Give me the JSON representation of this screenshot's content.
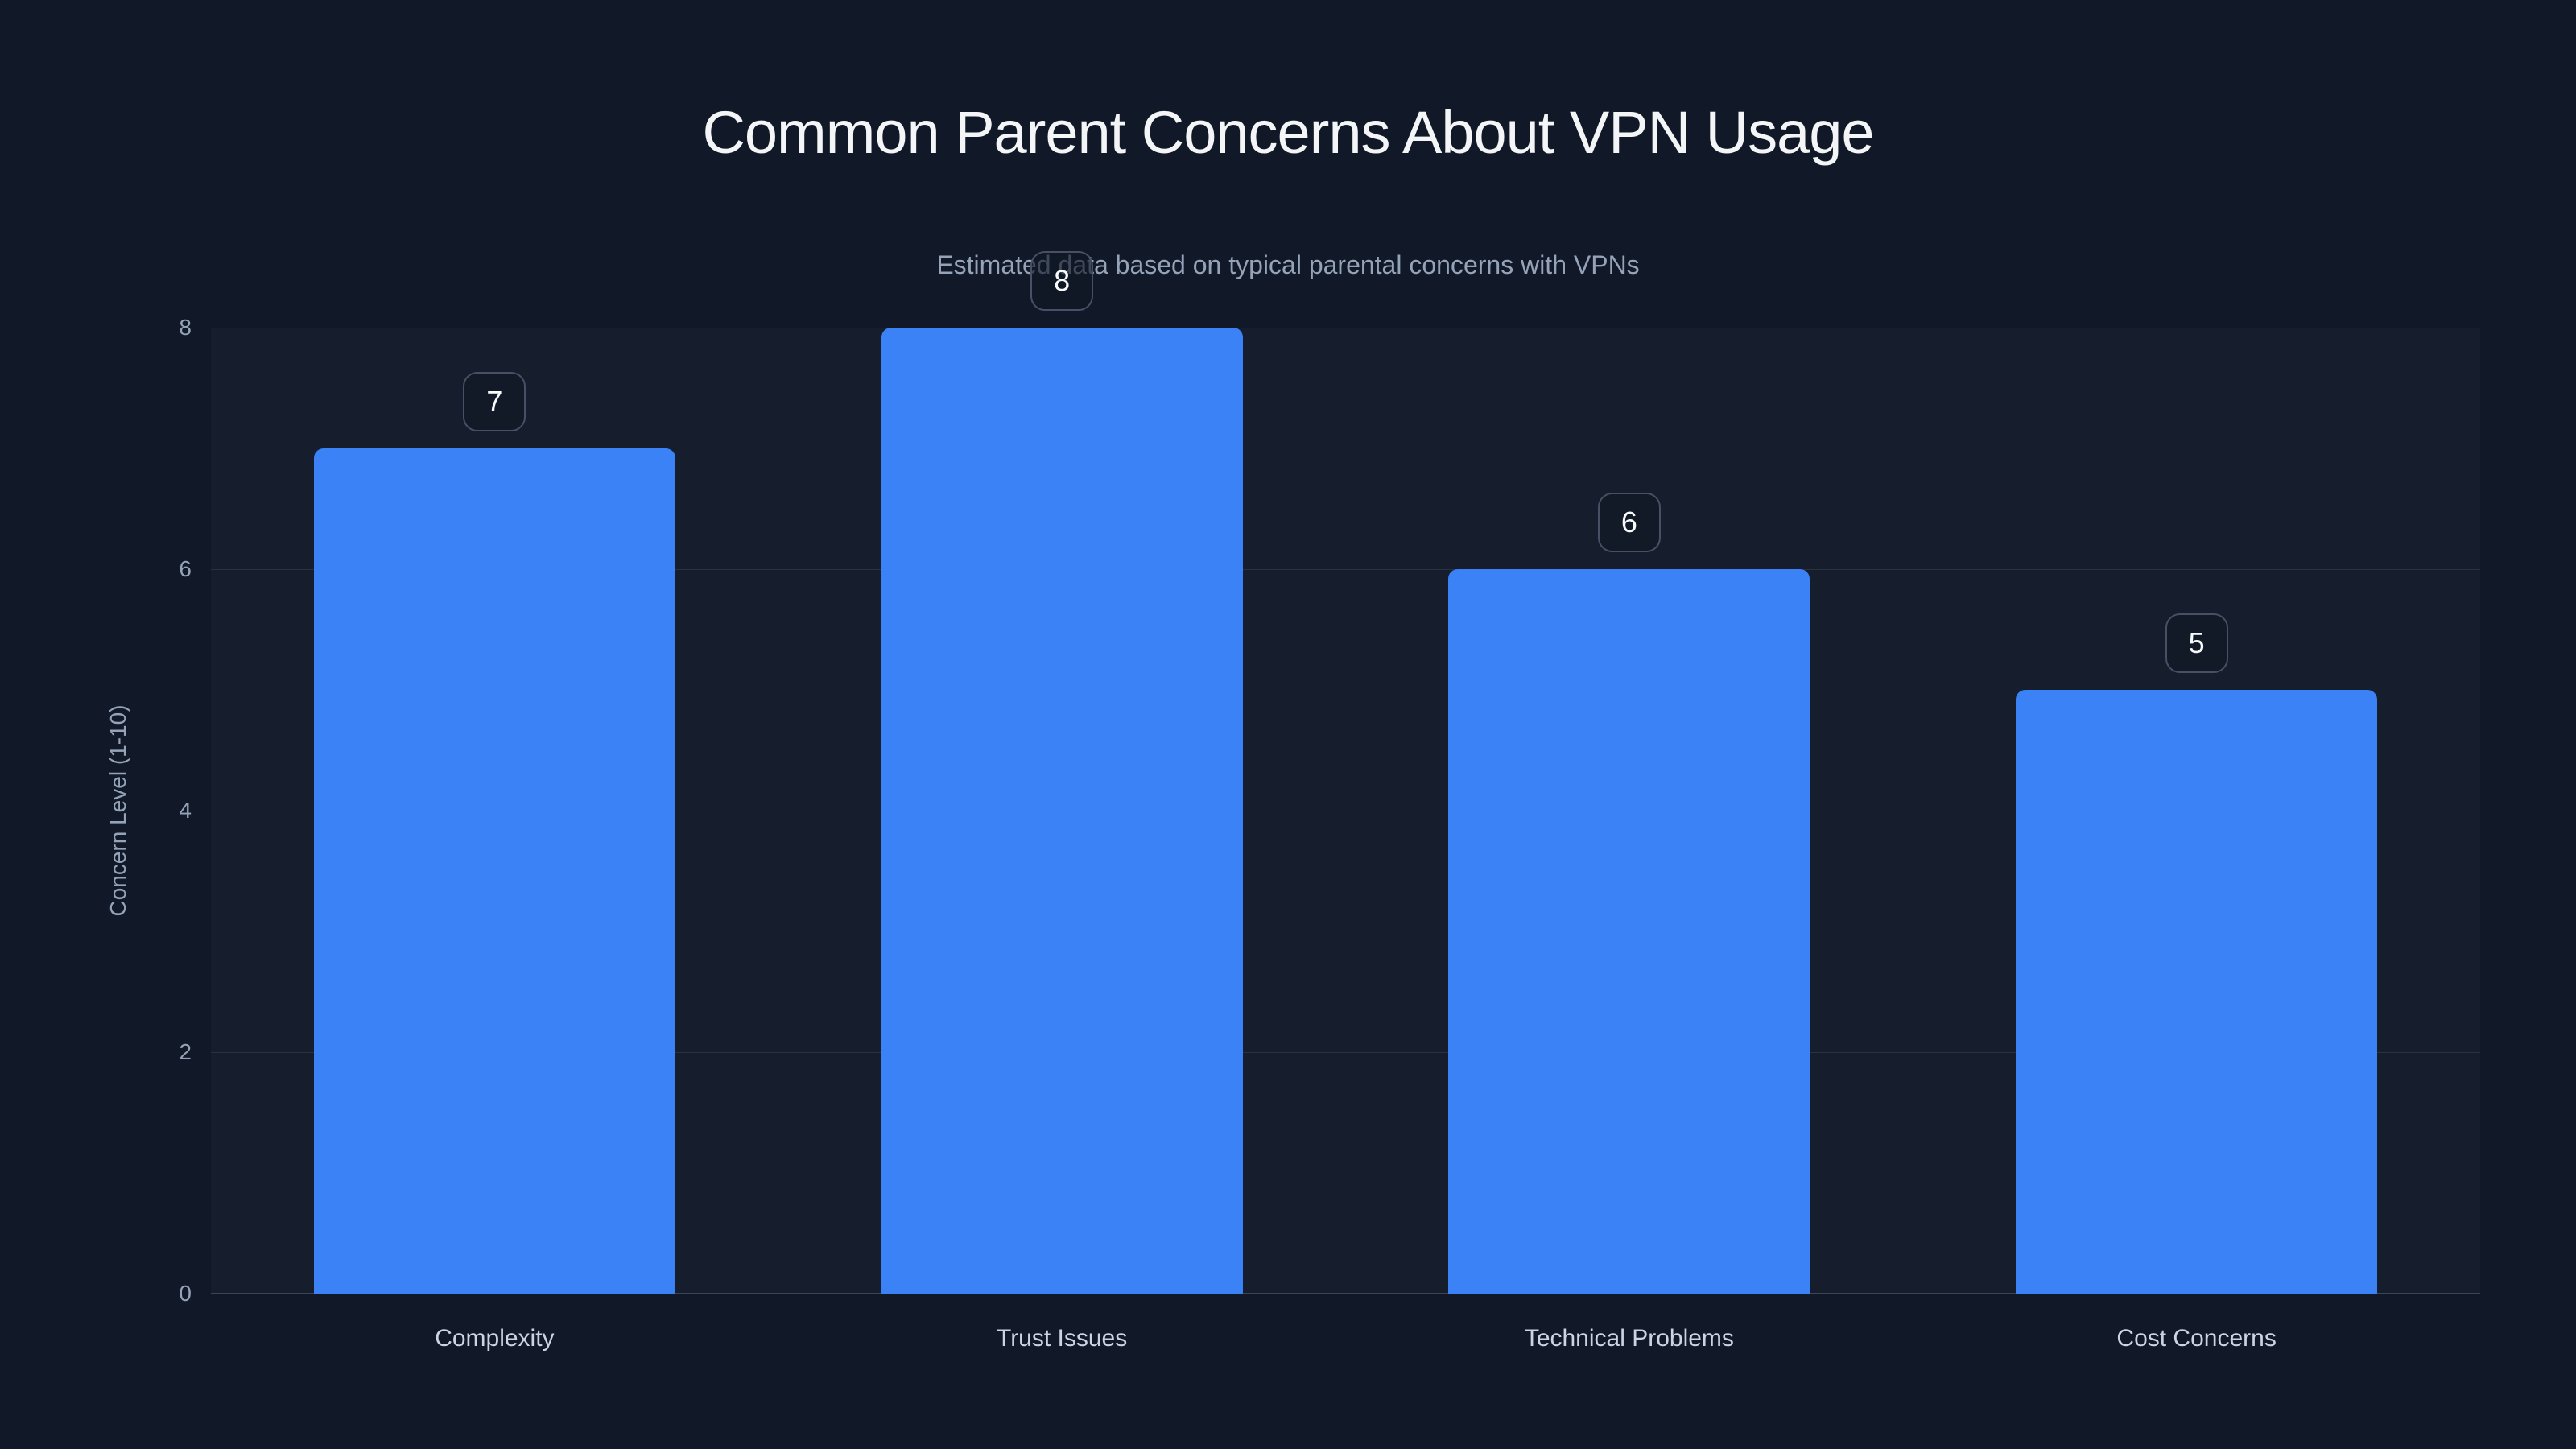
{
  "chart_data": {
    "type": "bar",
    "title": "Common Parent Concerns About VPN Usage",
    "subtitle": "Estimated data based on typical parental concerns with VPNs",
    "ylabel": "Concern Level (1-10)",
    "xlabel": "",
    "categories": [
      "Complexity",
      "Trust Issues",
      "Technical Problems",
      "Cost Concerns"
    ],
    "values": [
      7,
      8,
      6,
      5
    ],
    "value_labels": [
      "7",
      "8",
      "6",
      "5"
    ],
    "ylim": [
      0,
      8
    ],
    "yticks": [
      0,
      2,
      4,
      6,
      8
    ],
    "grid": true,
    "legend": false,
    "bar_percentage": 0.637,
    "colors": {
      "background": "#111827",
      "bar": "#3b82f6",
      "title": "#f3f5f7",
      "subtitle": "#94a3b8",
      "tick": "#94a3b8",
      "category": "#cbd5e1",
      "grid": "rgba(148,163,184,0.16)",
      "baseline": "rgba(148,163,184,0.30)",
      "plot_background": "rgba(148,163,184,0.04)",
      "badge_border": "#475065",
      "badge_background": "rgba(17,24,39,0.65)",
      "badge_text": "#f8fafc"
    }
  }
}
